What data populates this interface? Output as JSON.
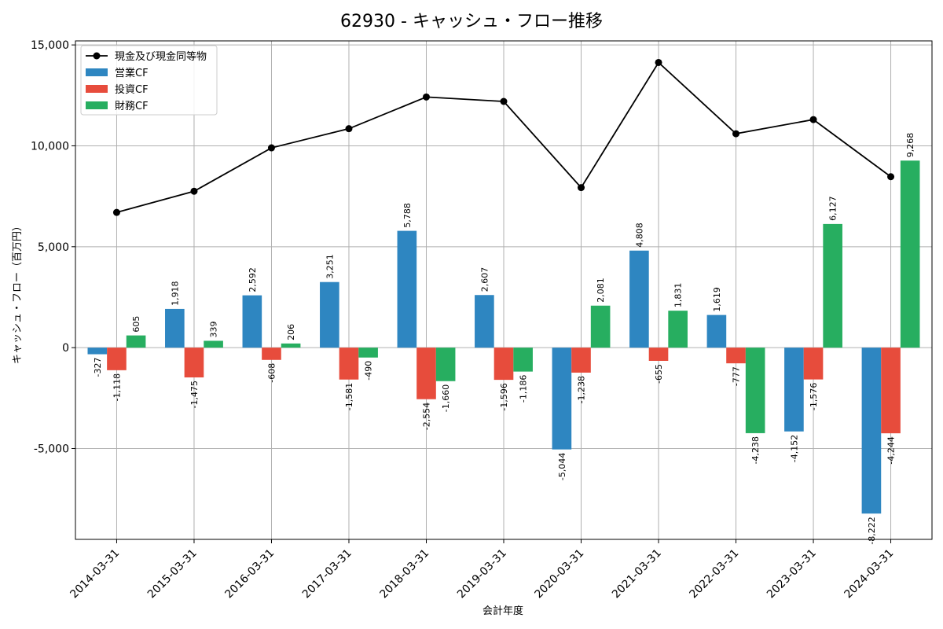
{
  "chart_data": {
    "type": "bar",
    "title": "62930 - キャッシュ・フロー推移",
    "xlabel": "会計年度",
    "ylabel": "キャッシュ・フロー（百万円）",
    "ylim": [
      -9500,
      15200
    ],
    "yticks": [
      -5000,
      0,
      5000,
      10000,
      15000
    ],
    "ytick_labels": [
      "-5,000",
      "0",
      "5,000",
      "10,000",
      "15,000"
    ],
    "grid": true,
    "legend_position": "top-left",
    "categories": [
      "2014-03-31",
      "2015-03-31",
      "2016-03-31",
      "2017-03-31",
      "2018-03-31",
      "2019-03-31",
      "2020-03-31",
      "2021-03-31",
      "2022-03-31",
      "2023-03-31",
      "2024-03-31"
    ],
    "series": [
      {
        "name": "営業CF",
        "kind": "bar",
        "color": "#2e86c1",
        "values": [
          -327,
          1918,
          2592,
          3251,
          5788,
          2607,
          -5044,
          4808,
          1619,
          -4152,
          -8222
        ],
        "labels": [
          "-327",
          "1,918",
          "2,592",
          "3,251",
          "5,788",
          "2,607",
          "-5,044",
          "4,808",
          "1,619",
          "-4,152",
          "-8,222"
        ]
      },
      {
        "name": "投資CF",
        "kind": "bar",
        "color": "#e74c3c",
        "values": [
          -1118,
          -1475,
          -608,
          -1581,
          -2554,
          -1596,
          -1238,
          -655,
          -777,
          -1576,
          -4244
        ],
        "labels": [
          "-1,118",
          "-1,475",
          "-608",
          "-1,581",
          "-2,554",
          "-1,596",
          "-1,238",
          "-655",
          "-777",
          "-1,576",
          "-4,244"
        ]
      },
      {
        "name": "財務CF",
        "kind": "bar",
        "color": "#27ae60",
        "values": [
          605,
          339,
          206,
          -490,
          -1660,
          -1186,
          2081,
          1831,
          -4238,
          6127,
          9268
        ],
        "labels": [
          "605",
          "339",
          "206",
          "-490",
          "-1,660",
          "-1,186",
          "2,081",
          "1,831",
          "-4,238",
          "6,127",
          "9,268"
        ]
      },
      {
        "name": "現金及び現金同等物",
        "kind": "line",
        "color": "#000000",
        "values": [
          6700,
          7750,
          9900,
          10850,
          12420,
          12200,
          7930,
          14130,
          10600,
          11300,
          8470
        ]
      }
    ],
    "legend_order": [
      "現金及び現金同等物",
      "営業CF",
      "投資CF",
      "財務CF"
    ]
  }
}
